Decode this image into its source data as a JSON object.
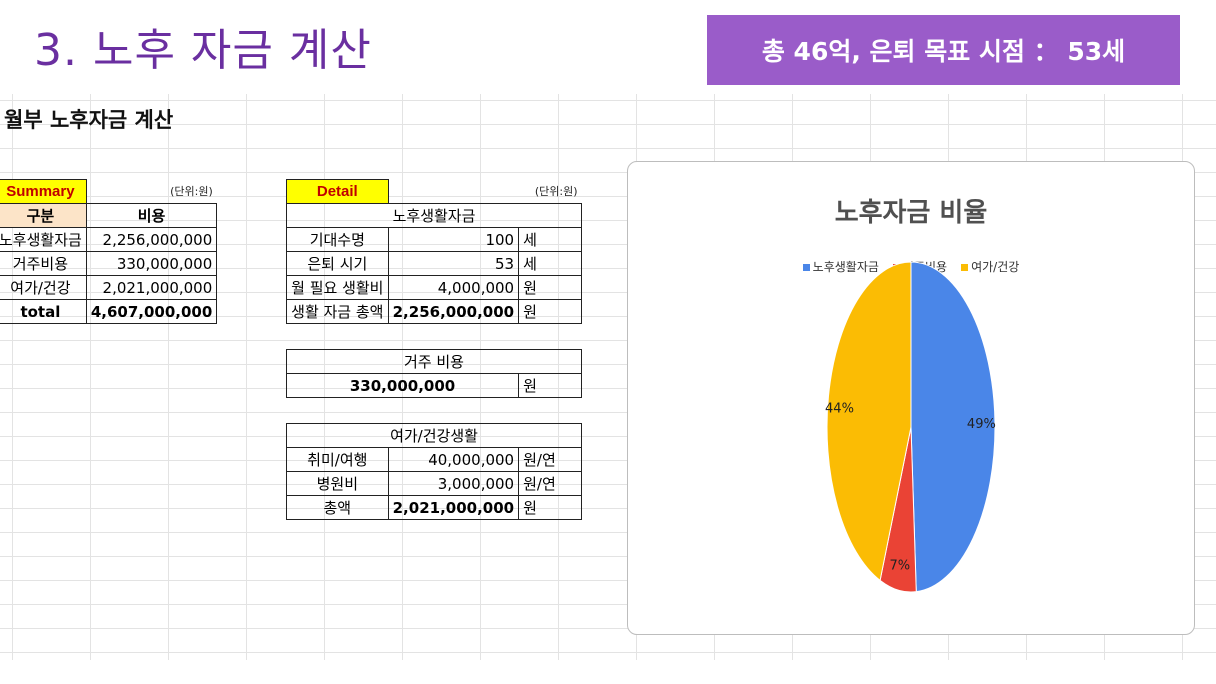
{
  "slide": {
    "title": "3. 노후 자금 계산",
    "banner": "총 46억, 은퇴 목표 시점 ： 53세"
  },
  "sheet": {
    "title": "월부 노후자금 계산",
    "summary": {
      "label": "Summary",
      "unit": "(단위:원)",
      "headers": [
        "구분",
        "비용"
      ],
      "rows": [
        {
          "name": "노후생활자금",
          "value": "2,256,000,000"
        },
        {
          "name": "거주비용",
          "value": "330,000,000"
        },
        {
          "name": "여가/건강",
          "value": "2,021,000,000"
        }
      ],
      "total_label": "total",
      "total_value": "4,607,000,000"
    },
    "detail": {
      "label": "Detail",
      "unit": "(단위:원)",
      "living": {
        "header": "노후생활자금",
        "rows": [
          {
            "name": "기대수명",
            "value": "100",
            "unit": "세"
          },
          {
            "name": "은퇴 시기",
            "value": "53",
            "unit": "세"
          },
          {
            "name": "월 필요 생활비",
            "value": "4,000,000",
            "unit": "원"
          },
          {
            "name": "생활 자금 총액",
            "value": "2,256,000,000",
            "unit": "원"
          }
        ]
      },
      "housing": {
        "header": "거주 비용",
        "value": "330,000,000",
        "unit": "원"
      },
      "leisure": {
        "header": "여가/건강생활",
        "rows": [
          {
            "name": "취미/여행",
            "value": "40,000,000",
            "unit": "원/연"
          },
          {
            "name": "병원비",
            "value": "3,000,000",
            "unit": "원/연"
          },
          {
            "name": "총액",
            "value": "2,021,000,000",
            "unit": "원"
          }
        ]
      }
    }
  },
  "chart_data": {
    "type": "pie",
    "title": "노후자금 비율",
    "legend_position": "top",
    "slices": [
      {
        "name": "노후생활자금",
        "value": 49,
        "label": "49%",
        "color": "#4a86e8"
      },
      {
        "name": "거주비용",
        "value": 7,
        "label": "7%",
        "color": "#ea4335"
      },
      {
        "name": "여가/건강",
        "value": 44,
        "label": "44%",
        "color": "#fbbc04"
      }
    ]
  }
}
